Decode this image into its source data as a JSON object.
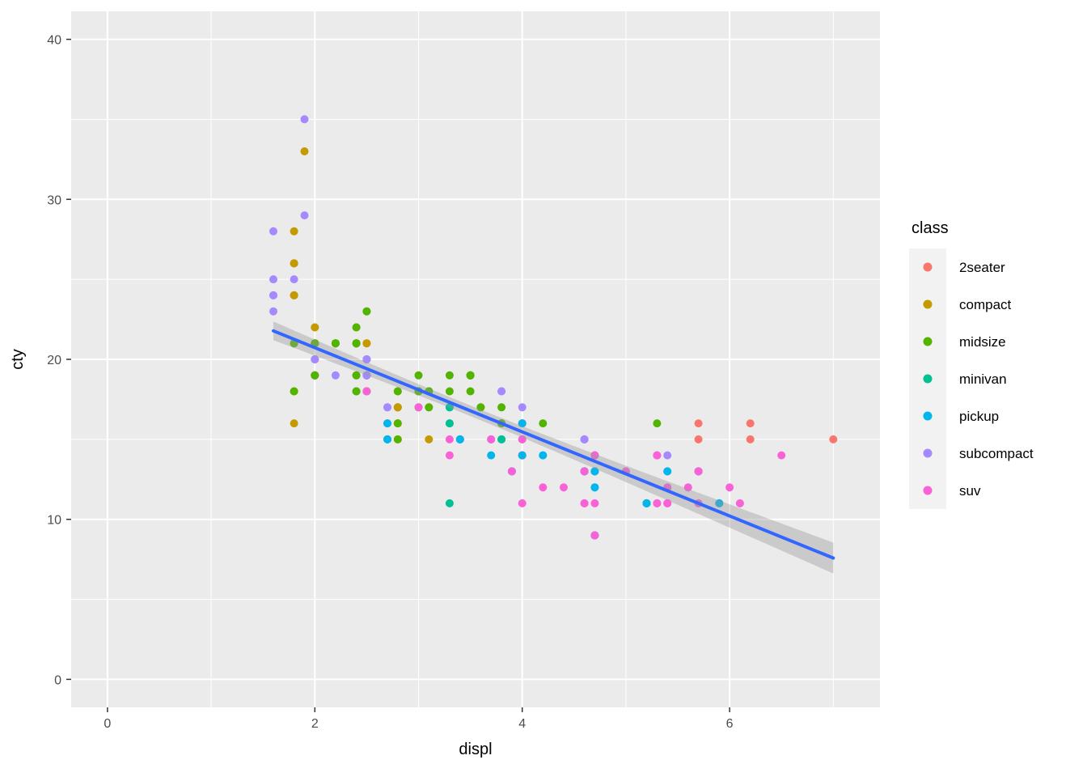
{
  "figure": {
    "background": "#FFFFFF"
  },
  "chart_data": {
    "type": "scatter",
    "title": "",
    "xlabel": "displ",
    "ylabel": "cty",
    "xlim": [
      -0.35,
      7.45
    ],
    "ylim": [
      -1.75,
      41.75
    ],
    "x_ticks": [
      0,
      2,
      4,
      6
    ],
    "y_ticks": [
      0,
      10,
      20,
      30,
      40
    ],
    "x_minor": [
      1,
      3,
      5,
      7
    ],
    "y_minor": [
      5,
      15,
      25,
      35
    ],
    "grid": true,
    "panel_background": "#EBEBEB",
    "grid_color": "#FFFFFF",
    "tick_color": "#333333",
    "legend": {
      "title": "class",
      "position": "right",
      "key_background": "#F2F2F2",
      "entries": [
        {
          "label": "2seater",
          "color": "#F8766D"
        },
        {
          "label": "compact",
          "color": "#C49A00"
        },
        {
          "label": "midsize",
          "color": "#53B400"
        },
        {
          "label": "minivan",
          "color": "#00C094"
        },
        {
          "label": "pickup",
          "color": "#00B6EB"
        },
        {
          "label": "subcompact",
          "color": "#A58AFF"
        },
        {
          "label": "suv",
          "color": "#FB61D7"
        }
      ]
    },
    "smooth": {
      "method": "lm",
      "color": "#3366FF",
      "band_color": "#999999",
      "band_opacity": 0.4,
      "intercept": 25.99,
      "slope": -2.63,
      "x_range": [
        1.6,
        7.0
      ],
      "n": 234,
      "x_mean": 3.47,
      "sigma": 2.57,
      "sxx": 387.8,
      "t": 1.97
    },
    "series_key": [
      "displ",
      "cty",
      "class"
    ],
    "points": [
      [
        1.8,
        18,
        "compact"
      ],
      [
        1.8,
        21,
        "compact"
      ],
      [
        2.0,
        20,
        "compact"
      ],
      [
        2.0,
        21,
        "compact"
      ],
      [
        2.8,
        16,
        "compact"
      ],
      [
        2.8,
        18,
        "compact"
      ],
      [
        3.1,
        18,
        "compact"
      ],
      [
        1.8,
        18,
        "compact"
      ],
      [
        1.8,
        16,
        "compact"
      ],
      [
        2.0,
        20,
        "compact"
      ],
      [
        2.0,
        19,
        "compact"
      ],
      [
        2.8,
        15,
        "compact"
      ],
      [
        2.8,
        17,
        "compact"
      ],
      [
        3.1,
        17,
        "compact"
      ],
      [
        3.1,
        15,
        "compact"
      ],
      [
        2.8,
        15,
        "midsize"
      ],
      [
        3.1,
        17,
        "midsize"
      ],
      [
        4.2,
        16,
        "midsize"
      ],
      [
        5.3,
        14,
        "suv"
      ],
      [
        5.3,
        11,
        "suv"
      ],
      [
        5.3,
        14,
        "suv"
      ],
      [
        5.7,
        13,
        "suv"
      ],
      [
        6.0,
        12,
        "suv"
      ],
      [
        5.7,
        16,
        "2seater"
      ],
      [
        5.7,
        15,
        "2seater"
      ],
      [
        6.2,
        16,
        "2seater"
      ],
      [
        6.2,
        15,
        "2seater"
      ],
      [
        7.0,
        15,
        "2seater"
      ],
      [
        5.3,
        14,
        "suv"
      ],
      [
        5.3,
        11,
        "suv"
      ],
      [
        5.7,
        11,
        "suv"
      ],
      [
        6.5,
        14,
        "suv"
      ],
      [
        2.4,
        19,
        "midsize"
      ],
      [
        2.4,
        22,
        "midsize"
      ],
      [
        3.1,
        18,
        "midsize"
      ],
      [
        3.5,
        18,
        "midsize"
      ],
      [
        3.6,
        17,
        "midsize"
      ],
      [
        2.4,
        18,
        "minivan"
      ],
      [
        3.0,
        17,
        "minivan"
      ],
      [
        3.3,
        16,
        "minivan"
      ],
      [
        3.3,
        16,
        "minivan"
      ],
      [
        3.3,
        17,
        "minivan"
      ],
      [
        3.3,
        17,
        "minivan"
      ],
      [
        3.3,
        11,
        "minivan"
      ],
      [
        3.8,
        15,
        "minivan"
      ],
      [
        3.8,
        15,
        "minivan"
      ],
      [
        3.8,
        16,
        "minivan"
      ],
      [
        4.0,
        16,
        "minivan"
      ],
      [
        3.7,
        15,
        "pickup"
      ],
      [
        3.7,
        14,
        "pickup"
      ],
      [
        3.9,
        13,
        "pickup"
      ],
      [
        3.9,
        13,
        "pickup"
      ],
      [
        4.7,
        14,
        "pickup"
      ],
      [
        4.7,
        14,
        "pickup"
      ],
      [
        4.7,
        9,
        "pickup"
      ],
      [
        5.2,
        11,
        "pickup"
      ],
      [
        5.2,
        11,
        "pickup"
      ],
      [
        3.9,
        13,
        "suv"
      ],
      [
        4.7,
        13,
        "suv"
      ],
      [
        4.7,
        9,
        "suv"
      ],
      [
        4.7,
        13,
        "suv"
      ],
      [
        5.2,
        11,
        "suv"
      ],
      [
        5.7,
        13,
        "suv"
      ],
      [
        5.9,
        11,
        "suv"
      ],
      [
        4.7,
        12,
        "pickup"
      ],
      [
        4.7,
        9,
        "pickup"
      ],
      [
        4.7,
        13,
        "pickup"
      ],
      [
        4.7,
        13,
        "pickup"
      ],
      [
        4.7,
        12,
        "pickup"
      ],
      [
        4.7,
        9,
        "pickup"
      ],
      [
        5.2,
        11,
        "pickup"
      ],
      [
        5.2,
        11,
        "pickup"
      ],
      [
        5.7,
        13,
        "pickup"
      ],
      [
        5.9,
        11,
        "pickup"
      ],
      [
        4.6,
        11,
        "suv"
      ],
      [
        5.4,
        11,
        "suv"
      ],
      [
        5.4,
        12,
        "suv"
      ],
      [
        4.0,
        14,
        "suv"
      ],
      [
        4.0,
        15,
        "suv"
      ],
      [
        4.0,
        14,
        "suv"
      ],
      [
        4.6,
        13,
        "suv"
      ],
      [
        4.6,
        13,
        "suv"
      ],
      [
        5.0,
        13,
        "suv"
      ],
      [
        4.2,
        14,
        "pickup"
      ],
      [
        4.2,
        14,
        "pickup"
      ],
      [
        4.6,
        13,
        "pickup"
      ],
      [
        4.6,
        13,
        "pickup"
      ],
      [
        4.6,
        13,
        "pickup"
      ],
      [
        5.4,
        13,
        "pickup"
      ],
      [
        5.4,
        13,
        "pickup"
      ],
      [
        3.8,
        18,
        "subcompact"
      ],
      [
        3.8,
        18,
        "subcompact"
      ],
      [
        4.0,
        17,
        "subcompact"
      ],
      [
        4.0,
        16,
        "subcompact"
      ],
      [
        4.6,
        15,
        "subcompact"
      ],
      [
        4.6,
        15,
        "subcompact"
      ],
      [
        4.6,
        15,
        "subcompact"
      ],
      [
        4.6,
        15,
        "subcompact"
      ],
      [
        5.4,
        14,
        "subcompact"
      ],
      [
        1.6,
        28,
        "subcompact"
      ],
      [
        1.6,
        24,
        "subcompact"
      ],
      [
        1.6,
        25,
        "subcompact"
      ],
      [
        1.6,
        23,
        "subcompact"
      ],
      [
        1.6,
        24,
        "subcompact"
      ],
      [
        1.8,
        26,
        "subcompact"
      ],
      [
        1.8,
        25,
        "subcompact"
      ],
      [
        1.8,
        24,
        "subcompact"
      ],
      [
        2.0,
        21,
        "subcompact"
      ],
      [
        2.4,
        18,
        "midsize"
      ],
      [
        2.4,
        18,
        "midsize"
      ],
      [
        2.4,
        21,
        "midsize"
      ],
      [
        2.4,
        21,
        "midsize"
      ],
      [
        2.5,
        18,
        "midsize"
      ],
      [
        2.5,
        18,
        "midsize"
      ],
      [
        3.3,
        19,
        "midsize"
      ],
      [
        2.0,
        19,
        "subcompact"
      ],
      [
        2.0,
        19,
        "subcompact"
      ],
      [
        2.0,
        20,
        "subcompact"
      ],
      [
        2.0,
        20,
        "subcompact"
      ],
      [
        2.7,
        17,
        "subcompact"
      ],
      [
        2.7,
        16,
        "subcompact"
      ],
      [
        2.7,
        17,
        "subcompact"
      ],
      [
        3.0,
        17,
        "suv"
      ],
      [
        3.7,
        15,
        "suv"
      ],
      [
        4.0,
        15,
        "suv"
      ],
      [
        4.7,
        14,
        "suv"
      ],
      [
        4.7,
        9,
        "suv"
      ],
      [
        4.7,
        14,
        "suv"
      ],
      [
        5.7,
        13,
        "suv"
      ],
      [
        6.1,
        11,
        "suv"
      ],
      [
        4.0,
        11,
        "suv"
      ],
      [
        4.2,
        12,
        "suv"
      ],
      [
        4.4,
        12,
        "suv"
      ],
      [
        4.6,
        11,
        "suv"
      ],
      [
        5.4,
        11,
        "suv"
      ],
      [
        5.4,
        11,
        "suv"
      ],
      [
        5.4,
        12,
        "suv"
      ],
      [
        4.0,
        14,
        "suv"
      ],
      [
        4.0,
        14,
        "suv"
      ],
      [
        4.6,
        13,
        "suv"
      ],
      [
        5.0,
        13,
        "suv"
      ],
      [
        2.4,
        21,
        "midsize"
      ],
      [
        2.4,
        19,
        "midsize"
      ],
      [
        2.5,
        23,
        "midsize"
      ],
      [
        2.5,
        23,
        "midsize"
      ],
      [
        3.5,
        19,
        "midsize"
      ],
      [
        3.5,
        19,
        "midsize"
      ],
      [
        3.0,
        18,
        "midsize"
      ],
      [
        3.0,
        19,
        "midsize"
      ],
      [
        3.5,
        19,
        "midsize"
      ],
      [
        3.3,
        15,
        "suv"
      ],
      [
        3.3,
        14,
        "suv"
      ],
      [
        4.0,
        14,
        "suv"
      ],
      [
        5.6,
        12,
        "suv"
      ],
      [
        3.1,
        18,
        "midsize"
      ],
      [
        3.8,
        16,
        "midsize"
      ],
      [
        3.8,
        17,
        "midsize"
      ],
      [
        3.8,
        16,
        "midsize"
      ],
      [
        5.3,
        16,
        "midsize"
      ],
      [
        2.5,
        18,
        "suv"
      ],
      [
        2.5,
        18,
        "suv"
      ],
      [
        2.5,
        20,
        "suv"
      ],
      [
        2.5,
        19,
        "suv"
      ],
      [
        2.5,
        20,
        "suv"
      ],
      [
        2.5,
        19,
        "suv"
      ],
      [
        2.2,
        21,
        "subcompact"
      ],
      [
        2.2,
        19,
        "subcompact"
      ],
      [
        2.5,
        19,
        "subcompact"
      ],
      [
        2.5,
        19,
        "subcompact"
      ],
      [
        2.5,
        19,
        "subcompact"
      ],
      [
        2.5,
        20,
        "subcompact"
      ],
      [
        2.5,
        20,
        "subcompact"
      ],
      [
        2.5,
        19,
        "subcompact"
      ],
      [
        2.7,
        15,
        "suv"
      ],
      [
        2.7,
        16,
        "suv"
      ],
      [
        3.4,
        15,
        "suv"
      ],
      [
        3.4,
        15,
        "suv"
      ],
      [
        4.0,
        16,
        "suv"
      ],
      [
        4.7,
        14,
        "suv"
      ],
      [
        2.2,
        21,
        "midsize"
      ],
      [
        2.2,
        21,
        "midsize"
      ],
      [
        2.4,
        21,
        "midsize"
      ],
      [
        2.4,
        21,
        "midsize"
      ],
      [
        3.0,
        18,
        "midsize"
      ],
      [
        3.0,
        18,
        "midsize"
      ],
      [
        3.5,
        19,
        "midsize"
      ],
      [
        2.2,
        21,
        "midsize"
      ],
      [
        2.2,
        21,
        "midsize"
      ],
      [
        2.4,
        21,
        "midsize"
      ],
      [
        2.4,
        22,
        "midsize"
      ],
      [
        3.0,
        18,
        "midsize"
      ],
      [
        3.0,
        18,
        "midsize"
      ],
      [
        3.3,
        18,
        "midsize"
      ],
      [
        1.8,
        24,
        "compact"
      ],
      [
        1.8,
        24,
        "compact"
      ],
      [
        1.8,
        26,
        "compact"
      ],
      [
        1.8,
        28,
        "compact"
      ],
      [
        1.8,
        26,
        "compact"
      ],
      [
        4.7,
        11,
        "suv"
      ],
      [
        5.7,
        13,
        "suv"
      ],
      [
        2.7,
        15,
        "pickup"
      ],
      [
        2.7,
        16,
        "pickup"
      ],
      [
        2.7,
        15,
        "pickup"
      ],
      [
        3.4,
        15,
        "pickup"
      ],
      [
        3.4,
        15,
        "pickup"
      ],
      [
        4.0,
        16,
        "pickup"
      ],
      [
        4.0,
        14,
        "pickup"
      ],
      [
        2.0,
        21,
        "compact"
      ],
      [
        2.0,
        19,
        "compact"
      ],
      [
        2.0,
        21,
        "compact"
      ],
      [
        2.0,
        22,
        "compact"
      ],
      [
        2.8,
        17,
        "compact"
      ],
      [
        1.9,
        33,
        "compact"
      ],
      [
        2.0,
        21,
        "compact"
      ],
      [
        2.0,
        19,
        "compact"
      ],
      [
        2.0,
        21,
        "compact"
      ],
      [
        2.0,
        22,
        "compact"
      ],
      [
        2.5,
        21,
        "compact"
      ],
      [
        2.5,
        21,
        "compact"
      ],
      [
        2.8,
        16,
        "compact"
      ],
      [
        2.8,
        17,
        "compact"
      ],
      [
        1.9,
        35,
        "subcompact"
      ],
      [
        1.9,
        29,
        "subcompact"
      ],
      [
        2.0,
        19,
        "subcompact"
      ],
      [
        2.0,
        19,
        "subcompact"
      ],
      [
        2.5,
        20,
        "subcompact"
      ],
      [
        2.5,
        20,
        "subcompact"
      ],
      [
        1.8,
        21,
        "midsize"
      ],
      [
        1.8,
        18,
        "midsize"
      ],
      [
        2.0,
        19,
        "midsize"
      ],
      [
        2.0,
        21,
        "midsize"
      ],
      [
        2.8,
        16,
        "midsize"
      ],
      [
        2.8,
        18,
        "midsize"
      ],
      [
        3.6,
        17,
        "midsize"
      ]
    ]
  }
}
